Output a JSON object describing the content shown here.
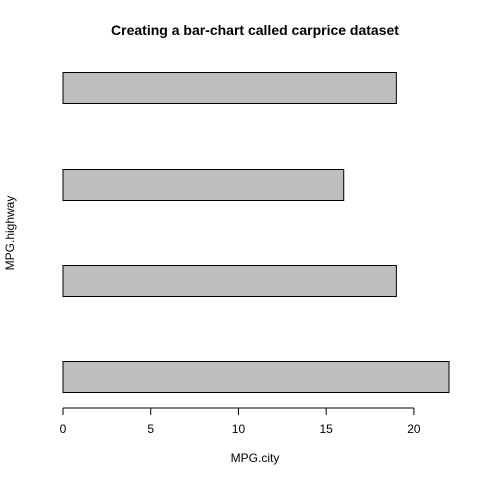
{
  "chart_data": {
    "type": "bar",
    "orientation": "horizontal",
    "title": "Creating a bar-chart called carprice dataset",
    "xlabel": "MPG.city",
    "ylabel": "MPG.highway",
    "xlim": [
      0,
      22
    ],
    "xticks": [
      0,
      5,
      10,
      15,
      20
    ],
    "categories": [
      "",
      "",
      "",
      ""
    ],
    "values": [
      22,
      19,
      16,
      19
    ],
    "bar_color": "#bebebe",
    "grid": false,
    "legend": "none"
  }
}
